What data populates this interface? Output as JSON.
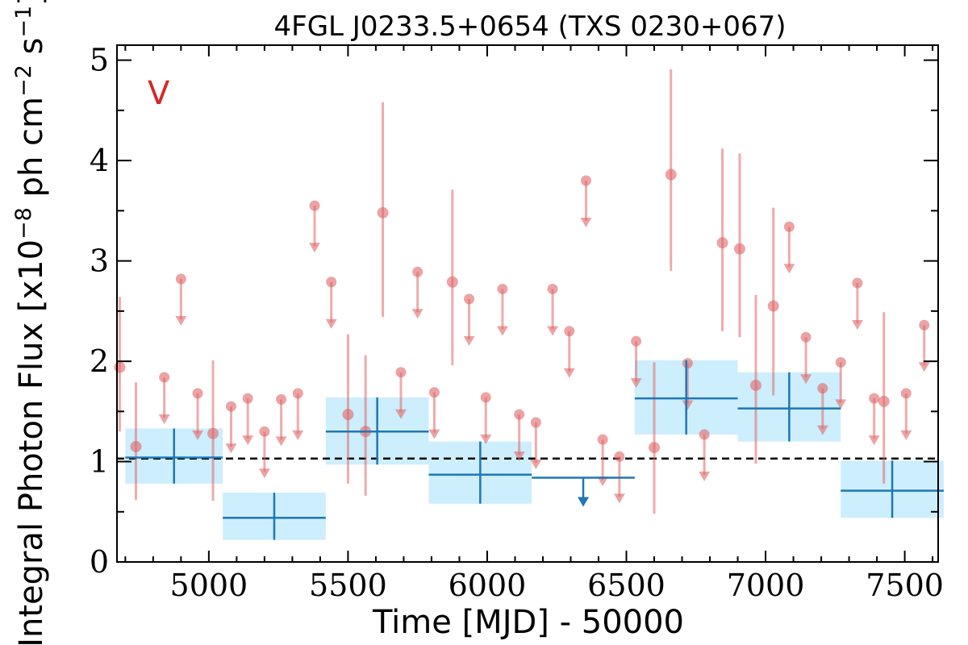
{
  "chart_data": {
    "type": "scatter",
    "title": "4FGL J0233.5+0654 (TXS 0230+067)",
    "xlabel": "Time [MJD] - 50000",
    "ylabel": "Integral Photon Flux [x10",
    "ylabel_exp": "−8",
    "ylabel_mid": " ph cm",
    "ylabel_exp2": "−2",
    "ylabel_tail": " s",
    "ylabel_exp3": "−1",
    "ylabel_close": "]",
    "panel_label": "V",
    "xlim": [
      4670,
      7620
    ],
    "ylim": [
      0,
      5.15
    ],
    "xticks": [
      "5000",
      "5500",
      "6000",
      "6500",
      "7000",
      "7500"
    ],
    "yticks": [
      "0",
      "1",
      "2",
      "3",
      "4",
      "5"
    ],
    "mean_flux": 1.03,
    "colors": {
      "points": "#e06666",
      "bins": "#1f77b4",
      "band": "#cdeefc"
    },
    "series": [
      {
        "kind": "short-bin detections",
        "points": [
          {
            "x": 4680,
            "y": 1.94,
            "ylo": 1.3,
            "yhi": 2.64
          },
          {
            "x": 4738,
            "y": 1.15,
            "ylo": 0.62,
            "yhi": 1.79
          },
          {
            "x": 5015,
            "y": 1.28,
            "ylo": 0.61,
            "yhi": 2.01
          },
          {
            "x": 5500,
            "y": 1.47,
            "ylo": 0.78,
            "yhi": 2.27
          },
          {
            "x": 5563,
            "y": 1.3,
            "ylo": 0.66,
            "yhi": 2.06
          },
          {
            "x": 5625,
            "y": 3.48,
            "ylo": 2.44,
            "yhi": 4.58
          },
          {
            "x": 5875,
            "y": 2.79,
            "ylo": 1.96,
            "yhi": 3.71
          },
          {
            "x": 6600,
            "y": 1.14,
            "ylo": 0.48,
            "yhi": 1.99
          },
          {
            "x": 6660,
            "y": 3.86,
            "ylo": 2.9,
            "yhi": 4.91
          },
          {
            "x": 6845,
            "y": 3.18,
            "ylo": 2.3,
            "yhi": 4.12
          },
          {
            "x": 6907,
            "y": 3.12,
            "ylo": 2.24,
            "yhi": 4.07
          },
          {
            "x": 6965,
            "y": 1.76,
            "ylo": 0.98,
            "yhi": 2.66
          },
          {
            "x": 7028,
            "y": 2.55,
            "ylo": 1.66,
            "yhi": 3.53
          },
          {
            "x": 7425,
            "y": 1.6,
            "ylo": 0.78,
            "yhi": 2.49
          }
        ]
      },
      {
        "kind": "short-bin upper limits",
        "points": [
          {
            "x": 4840,
            "y": 1.84
          },
          {
            "x": 4900,
            "y": 2.82
          },
          {
            "x": 4960,
            "y": 1.68
          },
          {
            "x": 5080,
            "y": 1.55
          },
          {
            "x": 5140,
            "y": 1.63
          },
          {
            "x": 5200,
            "y": 1.3
          },
          {
            "x": 5260,
            "y": 1.62
          },
          {
            "x": 5320,
            "y": 1.68
          },
          {
            "x": 5380,
            "y": 3.55
          },
          {
            "x": 5440,
            "y": 2.79
          },
          {
            "x": 5690,
            "y": 1.89
          },
          {
            "x": 5750,
            "y": 2.89
          },
          {
            "x": 5810,
            "y": 1.69
          },
          {
            "x": 5935,
            "y": 2.62
          },
          {
            "x": 5995,
            "y": 1.64
          },
          {
            "x": 6055,
            "y": 2.72
          },
          {
            "x": 6115,
            "y": 1.47
          },
          {
            "x": 6175,
            "y": 1.39
          },
          {
            "x": 6235,
            "y": 2.72
          },
          {
            "x": 6295,
            "y": 2.3
          },
          {
            "x": 6355,
            "y": 3.8
          },
          {
            "x": 6415,
            "y": 1.22
          },
          {
            "x": 6475,
            "y": 1.05
          },
          {
            "x": 6535,
            "y": 2.2
          },
          {
            "x": 6720,
            "y": 1.98
          },
          {
            "x": 6780,
            "y": 1.27
          },
          {
            "x": 7085,
            "y": 3.34
          },
          {
            "x": 7145,
            "y": 2.24
          },
          {
            "x": 7205,
            "y": 1.73
          },
          {
            "x": 7270,
            "y": 1.99
          },
          {
            "x": 7330,
            "y": 2.78
          },
          {
            "x": 7390,
            "y": 1.63
          },
          {
            "x": 7505,
            "y": 1.68
          },
          {
            "x": 7570,
            "y": 2.36
          }
        ]
      },
      {
        "kind": "long bins",
        "bins": [
          {
            "x0": 4700,
            "x1": 5050,
            "y": 1.04,
            "ylo": 0.78,
            "yhi": 1.33
          },
          {
            "x0": 5050,
            "x1": 5420,
            "y": 0.44,
            "ylo": 0.22,
            "yhi": 0.69
          },
          {
            "x0": 5420,
            "x1": 5790,
            "y": 1.3,
            "ylo": 0.97,
            "yhi": 1.64
          },
          {
            "x0": 5790,
            "x1": 6160,
            "y": 0.87,
            "ylo": 0.58,
            "yhi": 1.2
          },
          {
            "x0": 6160,
            "x1": 6530,
            "y": 0.84,
            "upper": true
          },
          {
            "x0": 6530,
            "x1": 6900,
            "y": 1.63,
            "ylo": 1.27,
            "yhi": 2.01
          },
          {
            "x0": 6900,
            "x1": 7270,
            "y": 1.53,
            "ylo": 1.2,
            "yhi": 1.89
          },
          {
            "x0": 7270,
            "x1": 7640,
            "y": 0.71,
            "ylo": 0.44,
            "yhi": 1.01
          }
        ]
      }
    ]
  }
}
